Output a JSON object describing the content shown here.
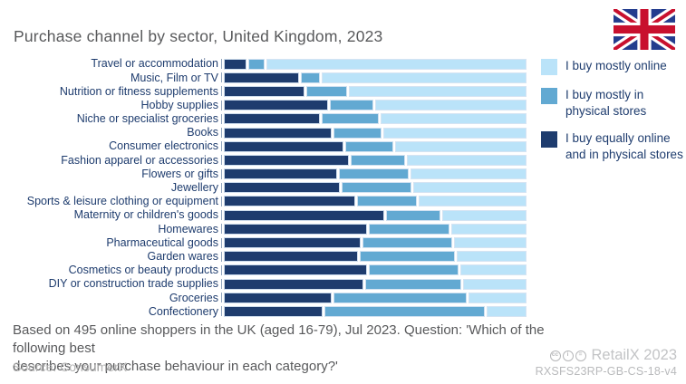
{
  "title": "Purchase channel by sector, United Kingdom, 2023",
  "colors": {
    "dark": "#1e3c6e",
    "mid": "#62a9d2",
    "light": "#bae3f9"
  },
  "flag": "united-kingdom-flag",
  "legend": {
    "items": [
      {
        "label": "I buy mostly online",
        "color_key": "light"
      },
      {
        "label": "I buy mostly in physical stores",
        "color_key": "mid"
      },
      {
        "label": "I buy equally online and in physical stores",
        "color_key": "dark"
      }
    ]
  },
  "chart_data": {
    "type": "bar",
    "stacked": true,
    "orientation": "horizontal",
    "unit": "percent",
    "xlim": [
      0,
      100
    ],
    "grid": false,
    "legend_position": "right",
    "categories": [
      "Travel or accommodation",
      "Music, Film or TV",
      "Nutrition or fitness supplements",
      "Hobby supplies",
      "Niche or specialist groceries",
      "Books",
      "Consumer electronics",
      "Fashion apparel or accessories",
      "Flowers or gifts",
      "Jewellery",
      "Sports & leisure clothing or equipment",
      "Maternity or children's goods",
      "Homewares",
      "Pharmaceutical goods",
      "Garden wares",
      "Cosmetics or beauty products",
      "DIY or construction trade supplies",
      "Groceries",
      "Confectionery"
    ],
    "series": [
      {
        "name": "I buy equally online and in physical stores",
        "color_key": "dark",
        "values": [
          7,
          25,
          27,
          35,
          32,
          36,
          40,
          42,
          38,
          39,
          44,
          54,
          48,
          46,
          45,
          48,
          47,
          36,
          33
        ]
      },
      {
        "name": "I buy mostly in physical stores",
        "color_key": "mid",
        "values": [
          5,
          6,
          13,
          14,
          19,
          16,
          16,
          18,
          23,
          23,
          20,
          18,
          27,
          30,
          32,
          30,
          32,
          45,
          54
        ]
      },
      {
        "name": "I buy mostly online",
        "color_key": "light",
        "values": [
          88,
          69,
          60,
          51,
          49,
          48,
          44,
          40,
          39,
          38,
          36,
          28,
          25,
          24,
          23,
          22,
          21,
          19,
          13
        ]
      }
    ]
  },
  "footnote": {
    "line1": "Based on 495 online shoppers in the UK (aged 16-79), Jul 2023. Question: 'Which of the following best",
    "line2": "describes your purchase behaviour in each category?'"
  },
  "source": "Source: ConsumerX",
  "branding": {
    "cc_icons": [
      "cc",
      "by",
      "nd"
    ],
    "cc_glyphs": [
      "cc",
      "i",
      "="
    ],
    "retailx": "RetailX 2023",
    "code": "RXSFS23RP-GB-CS-18-v4"
  }
}
